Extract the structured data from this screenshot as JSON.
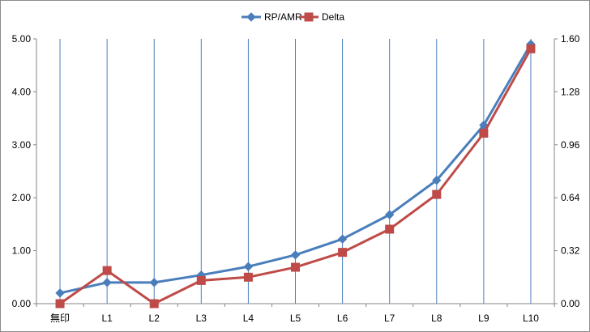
{
  "chart_data": {
    "type": "line",
    "categories": [
      "無印",
      "L1",
      "L2",
      "L3",
      "L4",
      "L5",
      "L6",
      "L7",
      "L8",
      "L9",
      "L10"
    ],
    "series": [
      {
        "name": "RP/AMR",
        "axis": "left",
        "color": "#4a7ebb",
        "marker": "diamond",
        "values": [
          0.2,
          0.4,
          0.4,
          0.54,
          0.7,
          0.92,
          1.22,
          1.68,
          2.33,
          3.37,
          4.9
        ]
      },
      {
        "name": "Delta",
        "axis": "right",
        "color": "#be4b48",
        "marker": "square",
        "values": [
          0.0,
          0.2,
          0.0,
          0.14,
          0.16,
          0.22,
          0.31,
          0.45,
          0.66,
          1.03,
          1.54
        ]
      }
    ],
    "y_left": {
      "range": [
        0,
        5
      ],
      "ticks": [
        "0.00",
        "1.00",
        "2.00",
        "3.00",
        "4.00",
        "5.00"
      ]
    },
    "y_right": {
      "range": [
        0,
        1.6
      ],
      "ticks": [
        "0.00",
        "0.32",
        "0.64",
        "0.96",
        "1.28",
        "1.60"
      ]
    },
    "grid": "vertical",
    "legend_position": "top-center",
    "colors": {
      "gridline": "#4f81bd",
      "axis": "#868686"
    }
  }
}
